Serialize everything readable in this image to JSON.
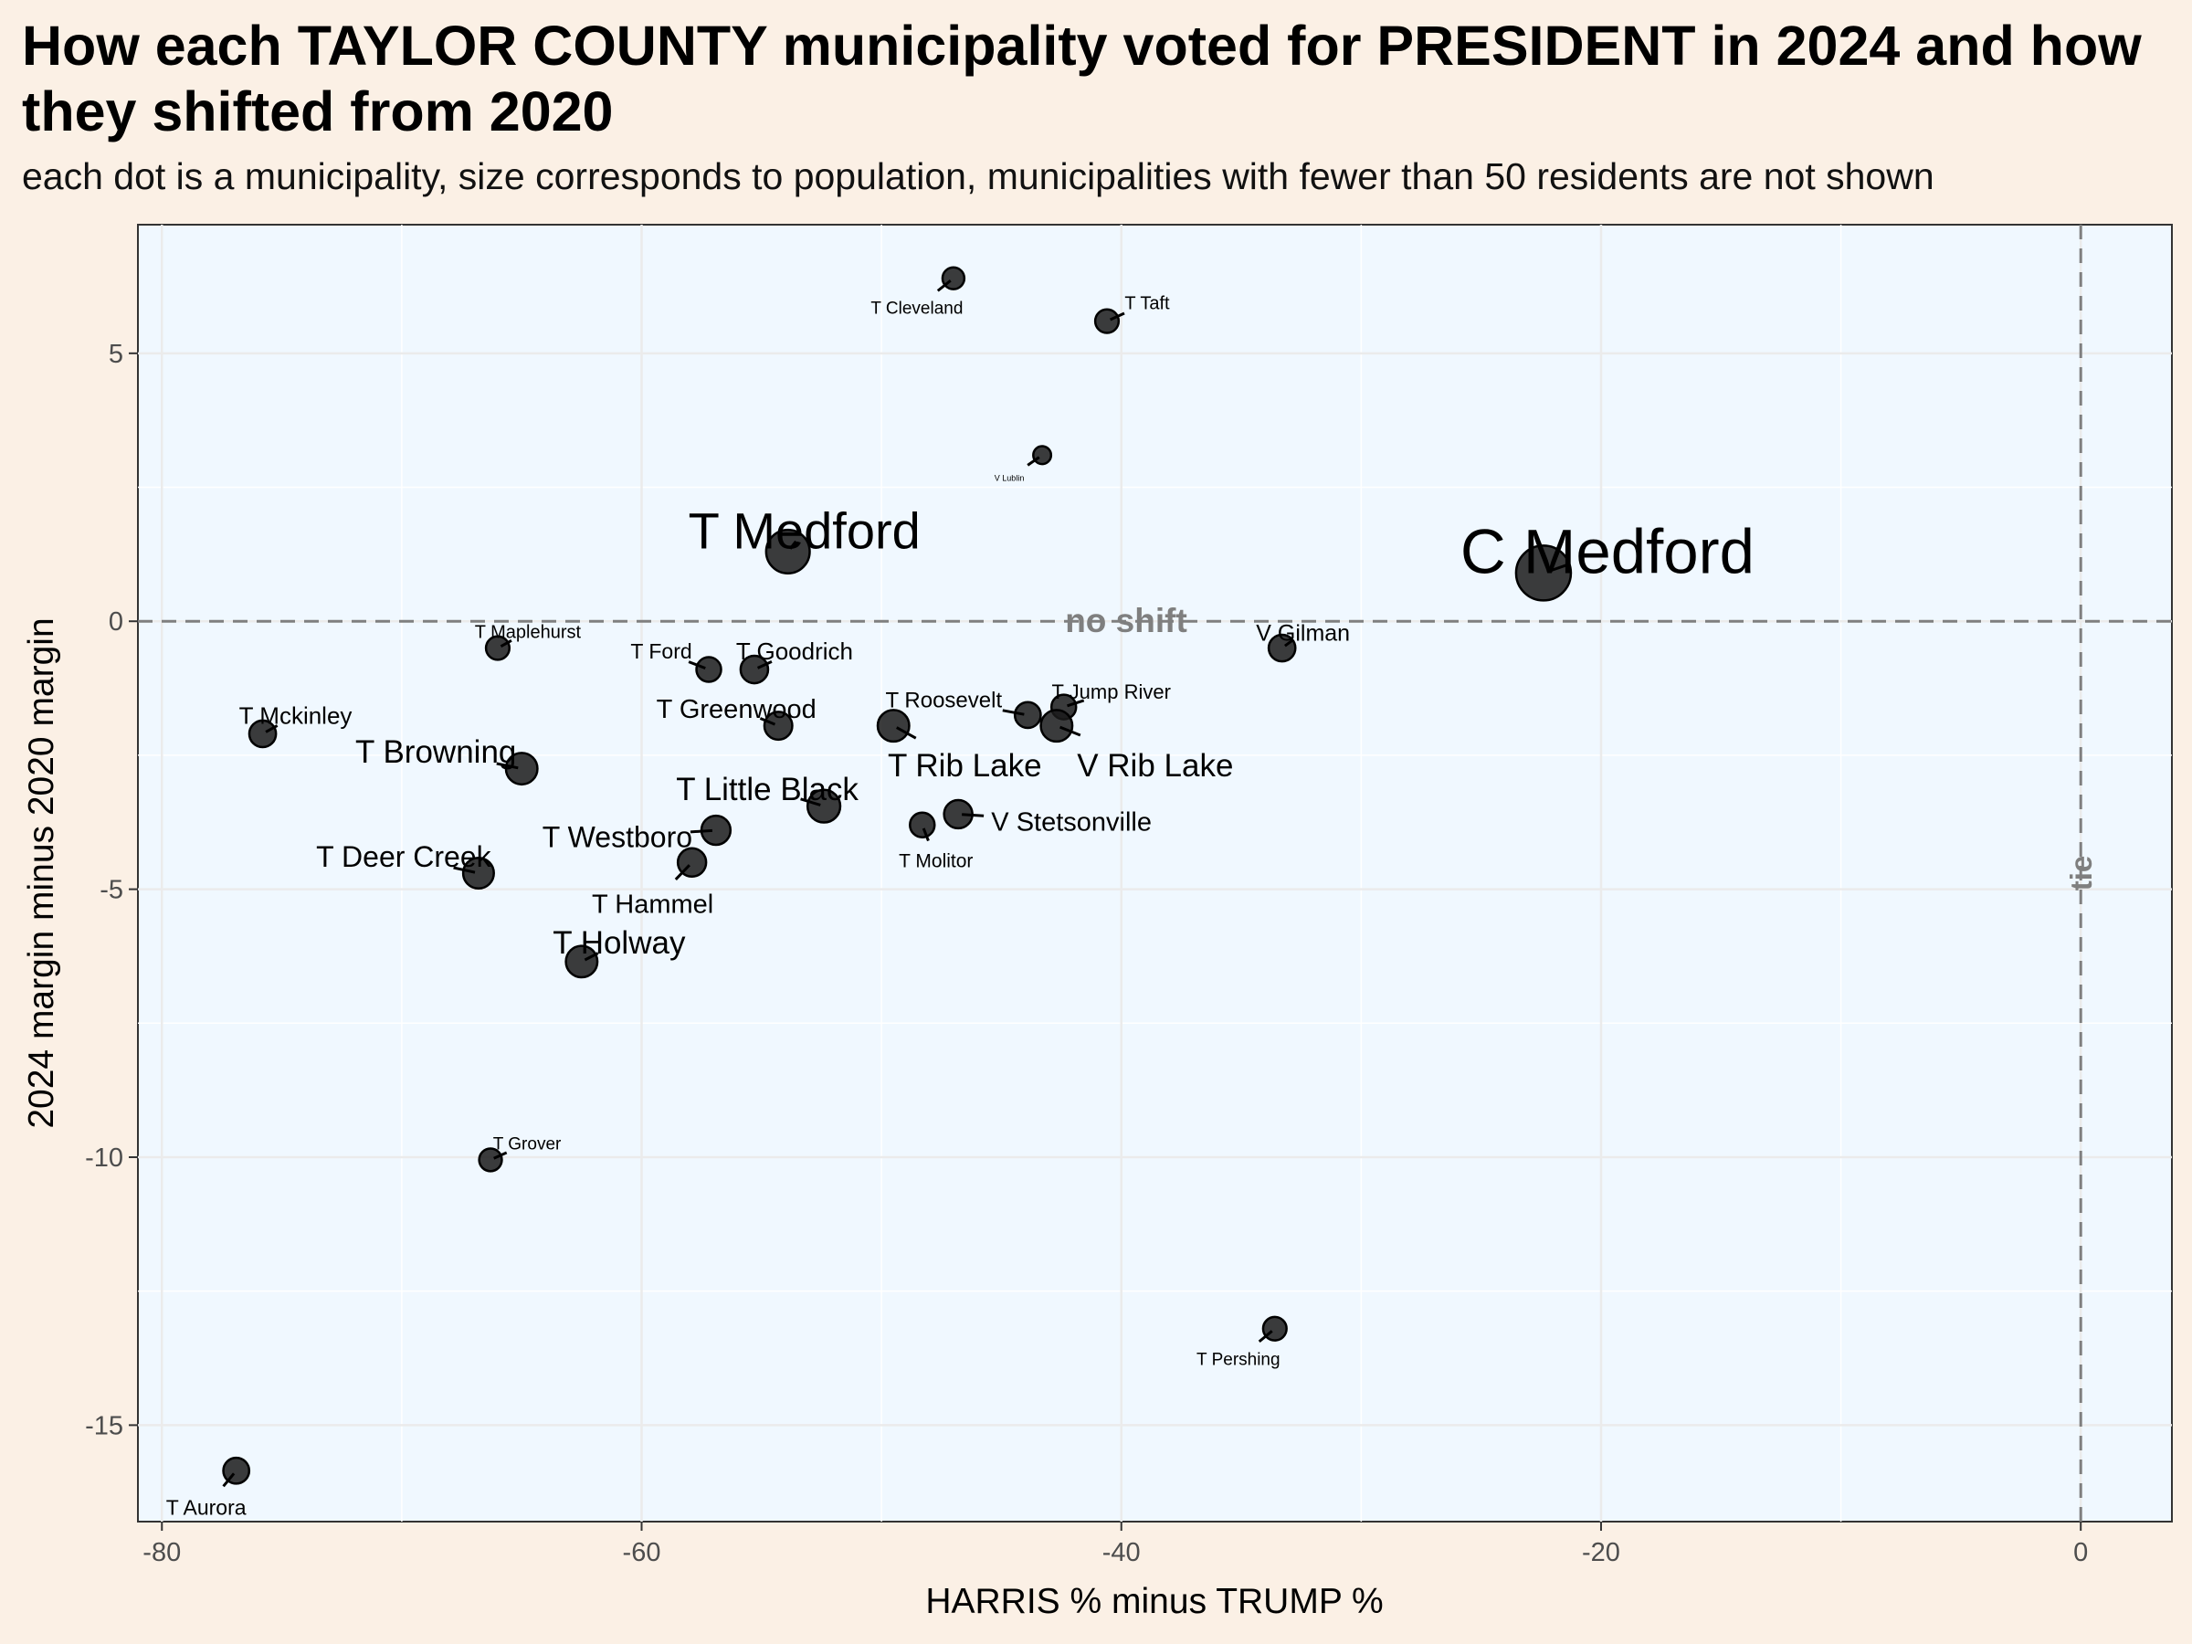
{
  "chart_data": {
    "type": "scatter",
    "title": "How each TAYLOR COUNTY municipality voted for PRESIDENT in 2024 and how they shifted from 2020",
    "subtitle": "each dot is a municipality, size corresponds to population, municipalities with fewer than 50 residents are not shown",
    "xlabel": "HARRIS % minus TRUMP %",
    "ylabel": "2024 margin minus 2020 margin",
    "xlim": [
      -81,
      3.8
    ],
    "ylim": [
      -16.8,
      7.4
    ],
    "xticks": [
      -80,
      -60,
      -40,
      -20,
      0
    ],
    "yticks": [
      5,
      0,
      -5,
      -10,
      -15
    ],
    "ytick_labels": [
      "5",
      "0",
      "-5",
      "-10",
      "-15"
    ],
    "grid": true,
    "reference_lines": [
      {
        "axis": "y",
        "value": 0,
        "label": "no shift"
      },
      {
        "axis": "x",
        "value": 0,
        "label": "tie"
      }
    ],
    "points": [
      {
        "name": "T Cleveland",
        "x": -47.0,
        "y": 6.4,
        "size": 0.18
      },
      {
        "name": "T Taft",
        "x": -40.6,
        "y": 5.6,
        "size": 0.22
      },
      {
        "name": "V Lublin",
        "x": -43.3,
        "y": 3.1,
        "size": 0.08
      },
      {
        "name": "T Medford",
        "x": -53.9,
        "y": 1.3,
        "size": 0.72
      },
      {
        "name": "C Medford",
        "x": -22.4,
        "y": 0.9,
        "size": 1.0
      },
      {
        "name": "T Maplehurst",
        "x": -66.0,
        "y": -0.5,
        "size": 0.22
      },
      {
        "name": "V Gilman",
        "x": -33.3,
        "y": -0.5,
        "size": 0.3
      },
      {
        "name": "T Ford",
        "x": -57.2,
        "y": -0.9,
        "size": 0.25
      },
      {
        "name": "T Goodrich",
        "x": -55.3,
        "y": -0.9,
        "size": 0.32
      },
      {
        "name": "T Mckinley",
        "x": -75.8,
        "y": -2.1,
        "size": 0.3
      },
      {
        "name": "T Greenwood",
        "x": -54.3,
        "y": -1.95,
        "size": 0.33
      },
      {
        "name": "T Roosevelt",
        "x": -43.9,
        "y": -1.75,
        "size": 0.28
      },
      {
        "name": "T Jump River",
        "x": -42.4,
        "y": -1.6,
        "size": 0.25
      },
      {
        "name": "T Rib Lake",
        "x": -49.5,
        "y": -1.95,
        "size": 0.42
      },
      {
        "name": "V Rib Lake",
        "x": -42.7,
        "y": -1.95,
        "size": 0.42
      },
      {
        "name": "T Browning",
        "x": -65.0,
        "y": -2.75,
        "size": 0.42
      },
      {
        "name": "T Little Black",
        "x": -52.4,
        "y": -3.45,
        "size": 0.45
      },
      {
        "name": "V Stetsonville",
        "x": -46.8,
        "y": -3.6,
        "size": 0.34
      },
      {
        "name": "T Westboro",
        "x": -56.9,
        "y": -3.9,
        "size": 0.36
      },
      {
        "name": "T Molitor",
        "x": -48.3,
        "y": -3.8,
        "size": 0.25
      },
      {
        "name": "T Hammel",
        "x": -57.9,
        "y": -4.5,
        "size": 0.34
      },
      {
        "name": "T Deer Creek",
        "x": -66.8,
        "y": -4.7,
        "size": 0.4
      },
      {
        "name": "T Holway",
        "x": -62.5,
        "y": -6.35,
        "size": 0.42
      },
      {
        "name": "T Grover",
        "x": -66.3,
        "y": -10.05,
        "size": 0.2
      },
      {
        "name": "T Pershing",
        "x": -33.6,
        "y": -13.2,
        "size": 0.22
      },
      {
        "name": "T Aurora",
        "x": -76.9,
        "y": -15.85,
        "size": 0.28
      }
    ]
  }
}
